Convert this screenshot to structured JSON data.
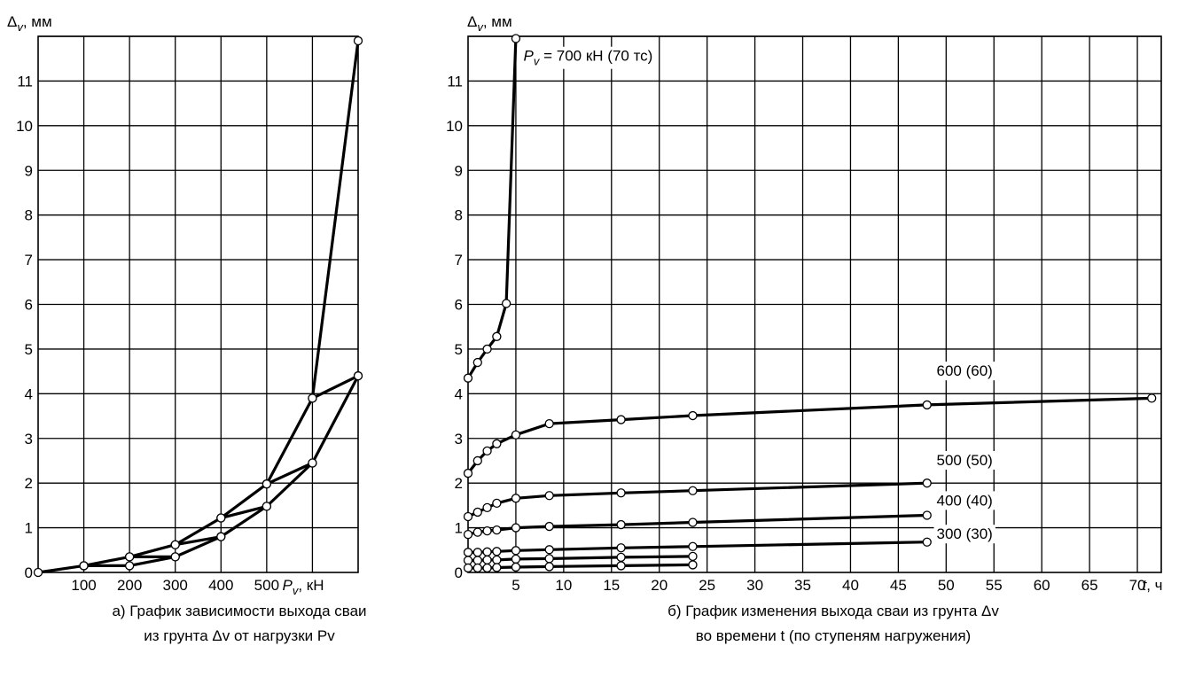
{
  "chart_data": [
    {
      "type": "line",
      "ylabel": "Δv, мм",
      "xlabel": "Pv, кН",
      "xlim": [
        0,
        700
      ],
      "ylim": [
        0,
        12
      ],
      "x_ticks": [
        "100",
        "200",
        "300",
        "400",
        "500"
      ],
      "y_ticks": [
        "0",
        "1",
        "2",
        "3",
        "4",
        "5",
        "6",
        "7",
        "8",
        "9",
        "10",
        "11"
      ],
      "grid": true,
      "series": [
        {
          "x": [
            0,
            100,
            200,
            300,
            400,
            500,
            600,
            700
          ],
          "y": [
            0,
            0.15,
            0.35,
            0.62,
            1.22,
            1.98,
            3.9,
            11.9
          ]
        },
        {
          "x": [
            100,
            200,
            300,
            400,
            500,
            600,
            700
          ],
          "y": [
            0.15,
            0.15,
            0.35,
            0.8,
            1.48,
            2.45,
            4.4
          ]
        },
        {
          "x": [
            200,
            300
          ],
          "y": [
            0.35,
            0.35
          ]
        },
        {
          "x": [
            300,
            400
          ],
          "y": [
            0.62,
            0.8
          ]
        },
        {
          "x": [
            400,
            500
          ],
          "y": [
            1.22,
            1.48
          ]
        },
        {
          "x": [
            500,
            600
          ],
          "y": [
            1.98,
            2.45
          ]
        },
        {
          "x": [
            600,
            700
          ],
          "y": [
            3.9,
            4.4
          ]
        }
      ],
      "caption_line1": "а) График зависимости выхода сваи",
      "caption_line2": "из грунта Δv от нагрузки Pv"
    },
    {
      "type": "line",
      "ylabel": "Δv, мм",
      "xlabel": "t, ч",
      "xlim": [
        0,
        72.5
      ],
      "ylim": [
        0,
        12
      ],
      "x_ticks": [
        "5",
        "10",
        "15",
        "20",
        "25",
        "30",
        "35",
        "40",
        "45",
        "50",
        "55",
        "60",
        "65",
        "70"
      ],
      "y_ticks": [
        "0",
        "1",
        "2",
        "3",
        "4",
        "5",
        "6",
        "7",
        "8",
        "9",
        "10",
        "11"
      ],
      "grid": true,
      "series": [
        {
          "name": "Pv = 700 кН (70 тс)",
          "x": [
            0,
            1,
            2,
            3,
            4,
            5
          ],
          "y": [
            4.35,
            4.7,
            5.0,
            5.28,
            6.02,
            11.95
          ]
        },
        {
          "name": "600 (60)",
          "x": [
            0,
            1,
            2,
            3,
            5,
            8.5,
            16,
            23.5,
            48,
            71.5
          ],
          "y": [
            2.22,
            2.5,
            2.72,
            2.88,
            3.08,
            3.33,
            3.42,
            3.51,
            3.75,
            3.9
          ]
        },
        {
          "name": "500 (50)",
          "x": [
            0,
            1,
            2,
            3,
            5,
            8.5,
            16,
            23.5,
            48
          ],
          "y": [
            1.25,
            1.35,
            1.45,
            1.55,
            1.66,
            1.72,
            1.78,
            1.83,
            2.0
          ]
        },
        {
          "name": "400 (40)",
          "x": [
            0,
            1,
            2,
            3,
            5,
            8.5,
            16,
            23.5,
            48
          ],
          "y": [
            0.85,
            0.9,
            0.93,
            0.95,
            1.0,
            1.03,
            1.07,
            1.12,
            1.28
          ]
        },
        {
          "name": "300 (30)",
          "x": [
            0,
            1,
            2,
            3,
            5,
            8.5,
            16,
            23.5,
            48
          ],
          "y": [
            0.45,
            0.45,
            0.46,
            0.47,
            0.49,
            0.51,
            0.55,
            0.58,
            0.68
          ]
        },
        {
          "x": [
            0,
            1,
            2,
            3,
            5,
            8.5,
            16,
            23.5
          ],
          "y": [
            0.27,
            0.27,
            0.28,
            0.28,
            0.3,
            0.31,
            0.34,
            0.36
          ]
        },
        {
          "x": [
            0,
            1,
            2,
            3,
            5,
            8.5,
            16,
            23.5
          ],
          "y": [
            0.1,
            0.1,
            0.1,
            0.11,
            0.12,
            0.13,
            0.15,
            0.17
          ]
        }
      ],
      "caption_line1": "б) График изменения выхода сваи из грунта Δv",
      "caption_line2": "во времени t (по ступеням нагружения)"
    }
  ]
}
